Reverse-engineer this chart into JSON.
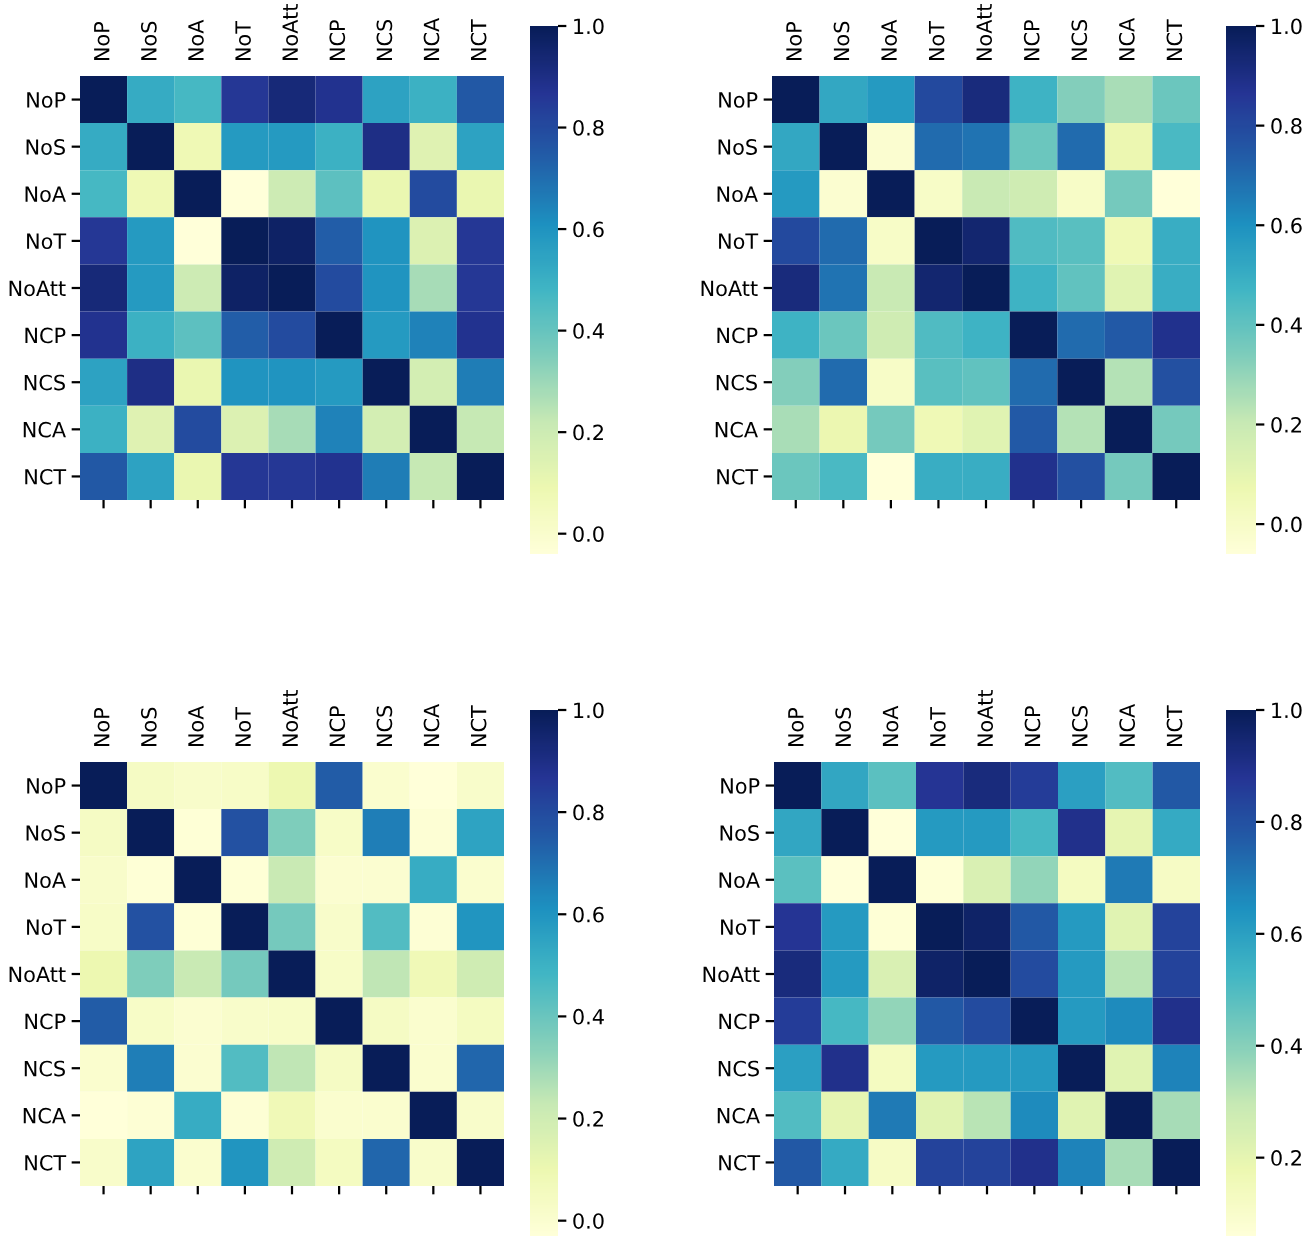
{
  "chart_data": [
    {
      "type": "heatmap",
      "categories": [
        "NoP",
        "NoS",
        "NoA",
        "NoT",
        "NoAtt",
        "NCP",
        "NCS",
        "NCA",
        "NCT"
      ],
      "y_categories": [
        "NoP",
        "NoS",
        "NoA",
        "NoT",
        "NoAtt",
        "NCP",
        "NCS",
        "NCA",
        "NCT"
      ],
      "cells": [
        [
          1,
          0.52,
          0.47,
          0.86,
          0.93,
          0.88,
          0.55,
          0.5,
          0.76
        ],
        [
          0.52,
          1,
          0.08,
          0.58,
          0.58,
          0.5,
          0.9,
          0.14,
          0.55
        ],
        [
          0.47,
          0.08,
          1,
          -0.04,
          0.2,
          0.42,
          0.1,
          0.8,
          0.1
        ],
        [
          0.86,
          0.58,
          -0.04,
          1,
          0.97,
          0.74,
          0.6,
          0.15,
          0.86
        ],
        [
          0.93,
          0.58,
          0.2,
          0.97,
          1,
          0.8,
          0.6,
          0.28,
          0.86
        ],
        [
          0.88,
          0.5,
          0.42,
          0.74,
          0.8,
          1,
          0.58,
          0.65,
          0.88
        ],
        [
          0.55,
          0.9,
          0.1,
          0.6,
          0.6,
          0.58,
          1,
          0.18,
          0.66
        ],
        [
          0.5,
          0.14,
          0.8,
          0.15,
          0.28,
          0.65,
          0.18,
          1,
          0.22
        ],
        [
          0.76,
          0.55,
          0.1,
          0.86,
          0.86,
          0.88,
          0.66,
          0.22,
          1
        ]
      ],
      "clim": [
        -0.04,
        1.0
      ],
      "cticks": [
        {
          "value": 0,
          "label": "0.0"
        },
        {
          "value": 0.2,
          "label": "0.2"
        },
        {
          "value": 0.4,
          "label": "0.4"
        },
        {
          "value": 0.6,
          "label": "0.6"
        },
        {
          "value": 0.8,
          "label": "0.8"
        },
        {
          "value": 1,
          "label": "1.0"
        }
      ],
      "grid": false
    },
    {
      "type": "heatmap",
      "categories": [
        "NoP",
        "NoS",
        "NoA",
        "NoT",
        "NoAtt",
        "NCP",
        "NCS",
        "NCA",
        "NCT"
      ],
      "y_categories": [
        "NoP",
        "NoS",
        "NoA",
        "NoT",
        "NoAtt",
        "NCP",
        "NCS",
        "NCA",
        "NCT"
      ],
      "cells": [
        [
          1,
          0.52,
          0.57,
          0.8,
          0.92,
          0.48,
          0.33,
          0.26,
          0.38
        ],
        [
          0.52,
          1,
          -0.03,
          0.7,
          0.68,
          0.38,
          0.7,
          0.08,
          0.45
        ],
        [
          0.57,
          -0.03,
          1,
          0,
          0.2,
          0.18,
          0,
          0.36,
          -0.06
        ],
        [
          0.8,
          0.7,
          0,
          1,
          0.95,
          0.44,
          0.42,
          0.06,
          0.5
        ],
        [
          0.92,
          0.68,
          0.2,
          0.95,
          1,
          0.48,
          0.4,
          0.12,
          0.5
        ],
        [
          0.48,
          0.38,
          0.18,
          0.44,
          0.48,
          1,
          0.7,
          0.75,
          0.88
        ],
        [
          0.33,
          0.7,
          0,
          0.42,
          0.4,
          0.7,
          1,
          0.24,
          0.78
        ],
        [
          0.26,
          0.08,
          0.36,
          0.06,
          0.12,
          0.75,
          0.24,
          1,
          0.36
        ],
        [
          0.38,
          0.45,
          -0.06,
          0.5,
          0.5,
          0.88,
          0.78,
          0.36,
          1
        ]
      ],
      "clim": [
        -0.06,
        1.0
      ],
      "cticks": [
        {
          "value": 0,
          "label": "0.0"
        },
        {
          "value": 0.2,
          "label": "0.2"
        },
        {
          "value": 0.4,
          "label": "0.4"
        },
        {
          "value": 0.6,
          "label": "0.6"
        },
        {
          "value": 0.8,
          "label": "0.8"
        },
        {
          "value": 1,
          "label": "1.0"
        }
      ],
      "grid": false
    },
    {
      "type": "heatmap",
      "categories": [
        "NoP",
        "NoS",
        "NoA",
        "NoT",
        "NoAtt",
        "NCP",
        "NCS",
        "NCA",
        "NCT"
      ],
      "y_categories": [
        "NoP",
        "NoS",
        "NoA",
        "NoT",
        "NoAtt",
        "NCP",
        "NCS",
        "NCA",
        "NCT"
      ],
      "cells": [
        [
          1,
          0.04,
          0.02,
          0.03,
          0.1,
          0.75,
          0.01,
          -0.03,
          0.02
        ],
        [
          0.04,
          1,
          -0.02,
          0.78,
          0.36,
          0.03,
          0.66,
          -0.01,
          0.55
        ],
        [
          0.02,
          -0.02,
          1,
          -0.02,
          0.22,
          0,
          0,
          0.52,
          0.01
        ],
        [
          0.03,
          0.78,
          -0.02,
          1,
          0.38,
          0.02,
          0.45,
          -0.01,
          0.6
        ],
        [
          0.1,
          0.36,
          0.22,
          0.38,
          1,
          0.03,
          0.24,
          0.08,
          0.2
        ],
        [
          0.75,
          0.03,
          0,
          0.02,
          0.03,
          1,
          0.04,
          0.01,
          0.05
        ],
        [
          0.01,
          0.66,
          0,
          0.45,
          0.24,
          0.04,
          1,
          0.01,
          0.72
        ],
        [
          -0.03,
          -0.01,
          0.52,
          -0.01,
          0.08,
          0.01,
          0.01,
          1,
          0.02
        ],
        [
          0.02,
          0.55,
          0.01,
          0.6,
          0.2,
          0.05,
          0.72,
          0.02,
          1
        ]
      ],
      "clim": [
        -0.03,
        1.0
      ],
      "cticks": [
        {
          "value": 0,
          "label": "0.0"
        },
        {
          "value": 0.2,
          "label": "0.2"
        },
        {
          "value": 0.4,
          "label": "0.4"
        },
        {
          "value": 0.6,
          "label": "0.6"
        },
        {
          "value": 0.8,
          "label": "0.8"
        },
        {
          "value": 1,
          "label": "1.0"
        }
      ],
      "grid": false
    },
    {
      "type": "heatmap",
      "categories": [
        "NoP",
        "NoS",
        "NoA",
        "NoT",
        "NoAtt",
        "NCP",
        "NCS",
        "NCA",
        "NCT"
      ],
      "y_categories": [
        "NoP",
        "NoS",
        "NoA",
        "NoT",
        "NoAtt",
        "NCP",
        "NCS",
        "NCA",
        "NCT"
      ],
      "cells": [
        [
          1,
          0.58,
          0.48,
          0.88,
          0.93,
          0.86,
          0.6,
          0.5,
          0.78
        ],
        [
          0.58,
          1,
          0.06,
          0.62,
          0.62,
          0.52,
          0.9,
          0.2,
          0.57
        ],
        [
          0.48,
          0.06,
          1,
          0.07,
          0.24,
          0.38,
          0.13,
          0.7,
          0.12
        ],
        [
          0.88,
          0.62,
          0.07,
          1,
          0.97,
          0.78,
          0.62,
          0.22,
          0.84
        ],
        [
          0.93,
          0.62,
          0.24,
          0.97,
          1,
          0.82,
          0.62,
          0.32,
          0.84
        ],
        [
          0.86,
          0.52,
          0.38,
          0.78,
          0.82,
          1,
          0.62,
          0.66,
          0.9
        ],
        [
          0.6,
          0.9,
          0.13,
          0.62,
          0.62,
          0.62,
          1,
          0.22,
          0.68
        ],
        [
          0.5,
          0.2,
          0.7,
          0.22,
          0.32,
          0.66,
          0.22,
          1,
          0.35
        ],
        [
          0.78,
          0.57,
          0.12,
          0.84,
          0.84,
          0.9,
          0.68,
          0.35,
          1
        ]
      ],
      "clim": [
        0.06,
        1.0
      ],
      "cticks": [
        {
          "value": 0.2,
          "label": "0.2"
        },
        {
          "value": 0.4,
          "label": "0.4"
        },
        {
          "value": 0.6,
          "label": "0.6"
        },
        {
          "value": 0.8,
          "label": "0.8"
        },
        {
          "value": 1,
          "label": "1.0"
        }
      ],
      "grid": false
    }
  ]
}
